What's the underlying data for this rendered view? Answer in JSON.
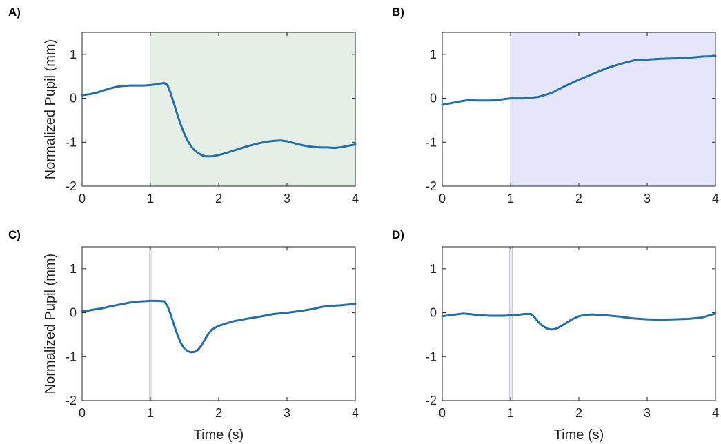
{
  "chart_data": [
    {
      "panel_label": "A)",
      "type": "line",
      "xlabel": "",
      "ylabel": "Normalized Pupil (mm)",
      "xlim": [
        0,
        4
      ],
      "ylim": [
        -2,
        1.5
      ],
      "xticks": [
        0,
        1,
        2,
        3,
        4
      ],
      "yticks": [
        -2,
        -1,
        0,
        1
      ],
      "shaded_region": {
        "x_start": 1,
        "x_end": 4,
        "color": "#e6efe6",
        "edge_color": "#c8d8c8"
      },
      "series": [
        {
          "color": "#1f6fb2",
          "x": [
            0,
            0.1,
            0.2,
            0.3,
            0.4,
            0.5,
            0.6,
            0.7,
            0.8,
            0.9,
            1.0,
            1.1,
            1.2,
            1.25,
            1.3,
            1.35,
            1.4,
            1.45,
            1.5,
            1.55,
            1.6,
            1.65,
            1.7,
            1.75,
            1.8,
            1.9,
            2.0,
            2.1,
            2.2,
            2.3,
            2.4,
            2.5,
            2.6,
            2.7,
            2.8,
            2.9,
            3.0,
            3.1,
            3.2,
            3.3,
            3.4,
            3.5,
            3.6,
            3.7,
            3.8,
            3.9,
            4.0
          ],
          "y": [
            0.07,
            0.09,
            0.12,
            0.17,
            0.22,
            0.26,
            0.28,
            0.29,
            0.29,
            0.29,
            0.3,
            0.32,
            0.35,
            0.3,
            0.1,
            -0.15,
            -0.4,
            -0.62,
            -0.82,
            -0.98,
            -1.1,
            -1.19,
            -1.25,
            -1.29,
            -1.32,
            -1.32,
            -1.29,
            -1.25,
            -1.2,
            -1.15,
            -1.1,
            -1.06,
            -1.02,
            -0.99,
            -0.97,
            -0.96,
            -0.98,
            -1.02,
            -1.06,
            -1.09,
            -1.11,
            -1.12,
            -1.12,
            -1.13,
            -1.11,
            -1.08,
            -1.05
          ]
        }
      ]
    },
    {
      "panel_label": "B)",
      "type": "line",
      "xlabel": "",
      "ylabel": "",
      "xlim": [
        0,
        4
      ],
      "ylim": [
        -2,
        1.5
      ],
      "xticks": [
        0,
        1,
        2,
        3,
        4
      ],
      "yticks": [
        -2,
        -1,
        0,
        1
      ],
      "shaded_region": {
        "x_start": 1,
        "x_end": 4,
        "color": "#e6e6fa",
        "edge_color": "#c8c8ee"
      },
      "series": [
        {
          "color": "#1f6fb2",
          "x": [
            0,
            0.1,
            0.2,
            0.3,
            0.4,
            0.5,
            0.6,
            0.7,
            0.8,
            0.9,
            1.0,
            1.2,
            1.4,
            1.6,
            1.8,
            2.0,
            2.2,
            2.4,
            2.6,
            2.8,
            3.0,
            3.2,
            3.4,
            3.6,
            3.8,
            4.0
          ],
          "y": [
            -0.15,
            -0.12,
            -0.09,
            -0.06,
            -0.04,
            -0.05,
            -0.05,
            -0.05,
            -0.04,
            -0.02,
            0.0,
            0.0,
            0.03,
            0.12,
            0.28,
            0.42,
            0.55,
            0.68,
            0.78,
            0.86,
            0.88,
            0.9,
            0.91,
            0.92,
            0.95,
            0.96
          ]
        }
      ]
    },
    {
      "panel_label": "C)",
      "type": "line",
      "xlabel": "Time (s)",
      "ylabel": "Normalized Pupil (mm)",
      "xlim": [
        0,
        4
      ],
      "ylim": [
        -2,
        1.5
      ],
      "xticks": [
        0,
        1,
        2,
        3,
        4
      ],
      "yticks": [
        -2,
        -1,
        0,
        1
      ],
      "shaded_region": {
        "x_start": 0.985,
        "x_end": 1.025,
        "color": "#e6e6e6",
        "edge_color": "#d0d0d0"
      },
      "series": [
        {
          "color": "#1f6fb2",
          "x": [
            0,
            0.1,
            0.2,
            0.3,
            0.4,
            0.5,
            0.6,
            0.7,
            0.8,
            0.9,
            1.0,
            1.1,
            1.2,
            1.25,
            1.3,
            1.35,
            1.4,
            1.45,
            1.5,
            1.55,
            1.6,
            1.65,
            1.7,
            1.75,
            1.8,
            1.85,
            1.9,
            2.0,
            2.1,
            2.2,
            2.4,
            2.6,
            2.8,
            3.0,
            3.2,
            3.4,
            3.5,
            3.6,
            3.8,
            4.0
          ],
          "y": [
            0.03,
            0.05,
            0.08,
            0.1,
            0.14,
            0.17,
            0.2,
            0.23,
            0.25,
            0.26,
            0.27,
            0.27,
            0.26,
            0.15,
            -0.05,
            -0.3,
            -0.52,
            -0.7,
            -0.82,
            -0.88,
            -0.9,
            -0.89,
            -0.84,
            -0.74,
            -0.6,
            -0.48,
            -0.38,
            -0.3,
            -0.25,
            -0.2,
            -0.14,
            -0.09,
            -0.03,
            0.0,
            0.04,
            0.09,
            0.13,
            0.15,
            0.17,
            0.2
          ]
        }
      ]
    },
    {
      "panel_label": "D)",
      "type": "line",
      "xlabel": "Time (s)",
      "ylabel": "",
      "xlim": [
        0,
        4
      ],
      "ylim": [
        -2,
        1.5
      ],
      "xticks": [
        0,
        1,
        2,
        3,
        4
      ],
      "yticks": [
        -2,
        -1,
        0,
        1
      ],
      "shaded_region": {
        "x_start": 0.985,
        "x_end": 1.025,
        "color": "#e6e6fa",
        "edge_color": "#c8c8ee"
      },
      "series": [
        {
          "color": "#1f6fb2",
          "x": [
            0,
            0.1,
            0.2,
            0.3,
            0.4,
            0.5,
            0.6,
            0.7,
            0.8,
            0.9,
            1.0,
            1.1,
            1.2,
            1.3,
            1.35,
            1.4,
            1.45,
            1.5,
            1.55,
            1.6,
            1.65,
            1.7,
            1.8,
            1.9,
            2.0,
            2.1,
            2.2,
            2.3,
            2.4,
            2.6,
            2.8,
            3.0,
            3.2,
            3.4,
            3.6,
            3.8,
            4.0
          ],
          "y": [
            -0.08,
            -0.06,
            -0.04,
            -0.02,
            -0.03,
            -0.05,
            -0.06,
            -0.07,
            -0.07,
            -0.07,
            -0.06,
            -0.05,
            -0.03,
            -0.03,
            -0.1,
            -0.2,
            -0.28,
            -0.33,
            -0.37,
            -0.38,
            -0.37,
            -0.34,
            -0.25,
            -0.15,
            -0.08,
            -0.05,
            -0.04,
            -0.05,
            -0.06,
            -0.09,
            -0.13,
            -0.15,
            -0.16,
            -0.15,
            -0.14,
            -0.11,
            -0.02
          ]
        }
      ]
    }
  ]
}
